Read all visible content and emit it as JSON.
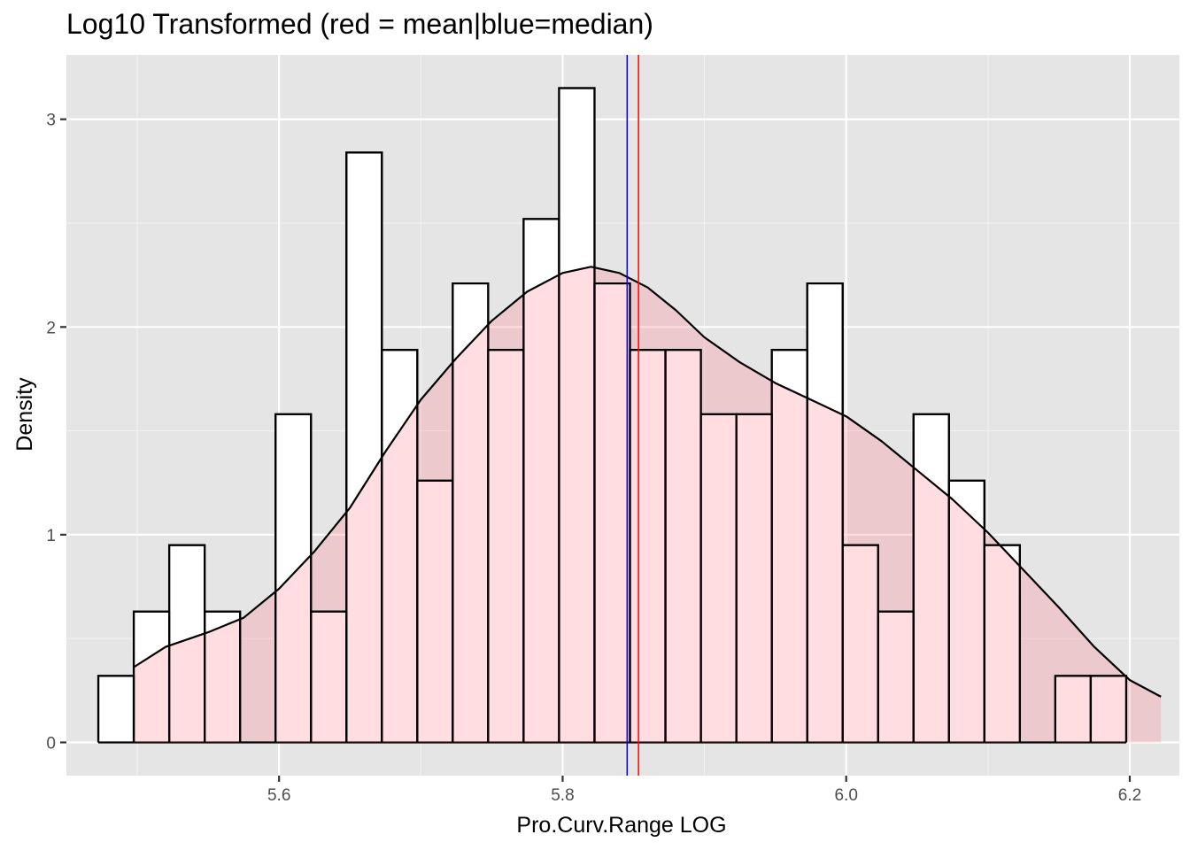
{
  "chart_data": {
    "type": "bar",
    "title": "Log10 Transformed (red = mean|blue=median)",
    "xlabel": "Pro.Curv.Range LOG",
    "ylabel": "Density",
    "xlim": [
      5.45,
      6.235
    ],
    "ylim": [
      -0.16,
      3.31
    ],
    "x_ticks": [
      5.6,
      5.8,
      6.0,
      6.2
    ],
    "x_tick_labels": [
      "5.6",
      "5.8",
      "6.0",
      "6.2"
    ],
    "y_ticks": [
      0,
      1,
      2,
      3
    ],
    "y_tick_labels": [
      "0",
      "1",
      "2",
      "3"
    ],
    "grid": true,
    "legend": "none",
    "histogram": {
      "bin_width": 0.025,
      "first_bin_left": 5.4725,
      "densities": [
        0.32,
        0.63,
        0.95,
        0.63,
        0.0,
        1.58,
        0.63,
        2.84,
        1.89,
        1.26,
        2.21,
        1.89,
        2.52,
        3.15,
        2.21,
        1.89,
        1.89,
        1.58,
        1.58,
        1.89,
        2.21,
        0.95,
        0.63,
        1.58,
        1.26,
        0.95,
        0.0,
        0.32,
        0.32
      ],
      "fill": "#ffffff",
      "stroke": "#000000"
    },
    "density_curve": {
      "x": [
        5.497,
        5.52,
        5.55,
        5.575,
        5.6,
        5.625,
        5.65,
        5.675,
        5.7,
        5.725,
        5.75,
        5.775,
        5.8,
        5.82,
        5.84,
        5.86,
        5.88,
        5.9,
        5.925,
        5.95,
        5.975,
        6.0,
        6.025,
        6.05,
        6.075,
        6.1,
        6.125,
        6.15,
        6.175,
        6.2,
        6.222
      ],
      "y": [
        0.36,
        0.46,
        0.53,
        0.6,
        0.74,
        0.92,
        1.13,
        1.4,
        1.65,
        1.85,
        2.03,
        2.17,
        2.26,
        2.29,
        2.26,
        2.19,
        2.08,
        1.95,
        1.83,
        1.73,
        1.65,
        1.57,
        1.45,
        1.31,
        1.17,
        1.01,
        0.83,
        0.65,
        0.46,
        0.3,
        0.22
      ],
      "fill": "#ff6b7e",
      "fill_opacity": 0.23,
      "stroke": "#000000"
    },
    "vlines": [
      {
        "name": "mean",
        "x": 5.8535,
        "color": "#ff0000"
      },
      {
        "name": "median",
        "x": 5.8455,
        "color": "#0000ff"
      }
    ]
  }
}
